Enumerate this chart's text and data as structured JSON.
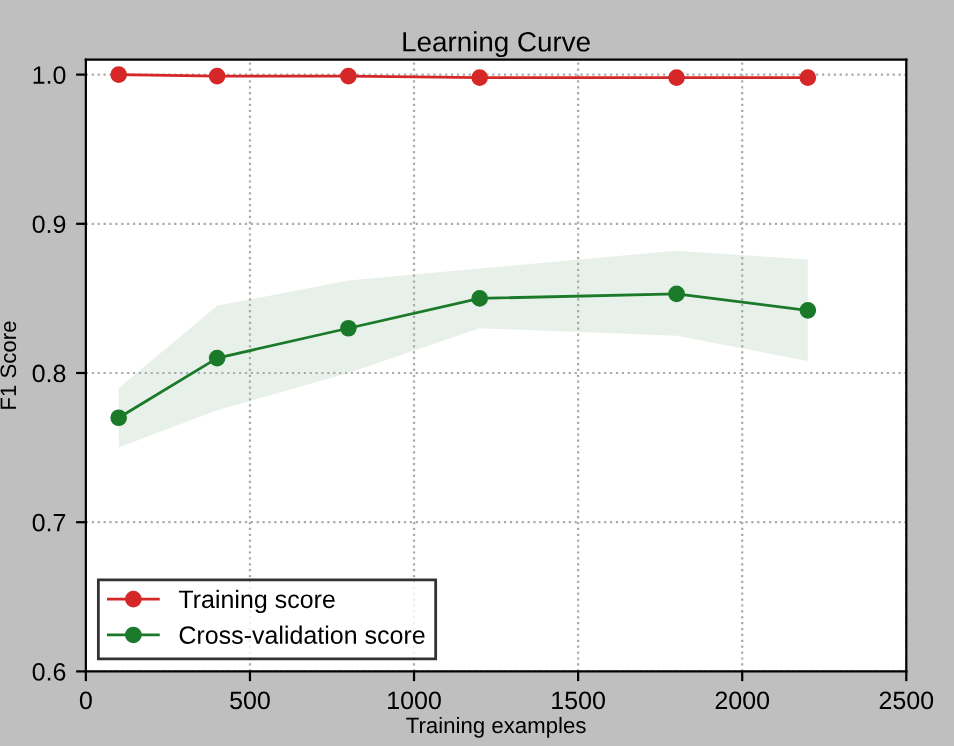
{
  "chart_data": {
    "type": "line",
    "title": "Learning Curve",
    "xlabel": "Training examples",
    "ylabel": "F1 Score",
    "x": [
      100,
      400,
      800,
      1200,
      1800,
      2200
    ],
    "series": [
      {
        "name": "Training score",
        "color": "#d62728",
        "values": [
          1.0,
          0.999,
          0.999,
          0.998,
          0.998,
          0.998
        ]
      },
      {
        "name": "Cross-validation score",
        "color": "#1a7a2a",
        "values": [
          0.77,
          0.81,
          0.83,
          0.85,
          0.853,
          0.842
        ],
        "lower": [
          0.75,
          0.775,
          0.8,
          0.83,
          0.825,
          0.808
        ],
        "upper": [
          0.79,
          0.845,
          0.862,
          0.87,
          0.882,
          0.876
        ]
      }
    ],
    "xlim": [
      0,
      2500
    ],
    "xticks": [
      0,
      500,
      1000,
      1500,
      2000,
      2500
    ],
    "ylim": [
      0.6,
      1.01
    ],
    "yticks": [
      0.6,
      0.7,
      0.8,
      0.9,
      {
        "value": 1,
        "label": "1.0"
      }
    ],
    "grid": true,
    "legend": "bottom left",
    "marker": "circle",
    "line_style": "solid"
  }
}
